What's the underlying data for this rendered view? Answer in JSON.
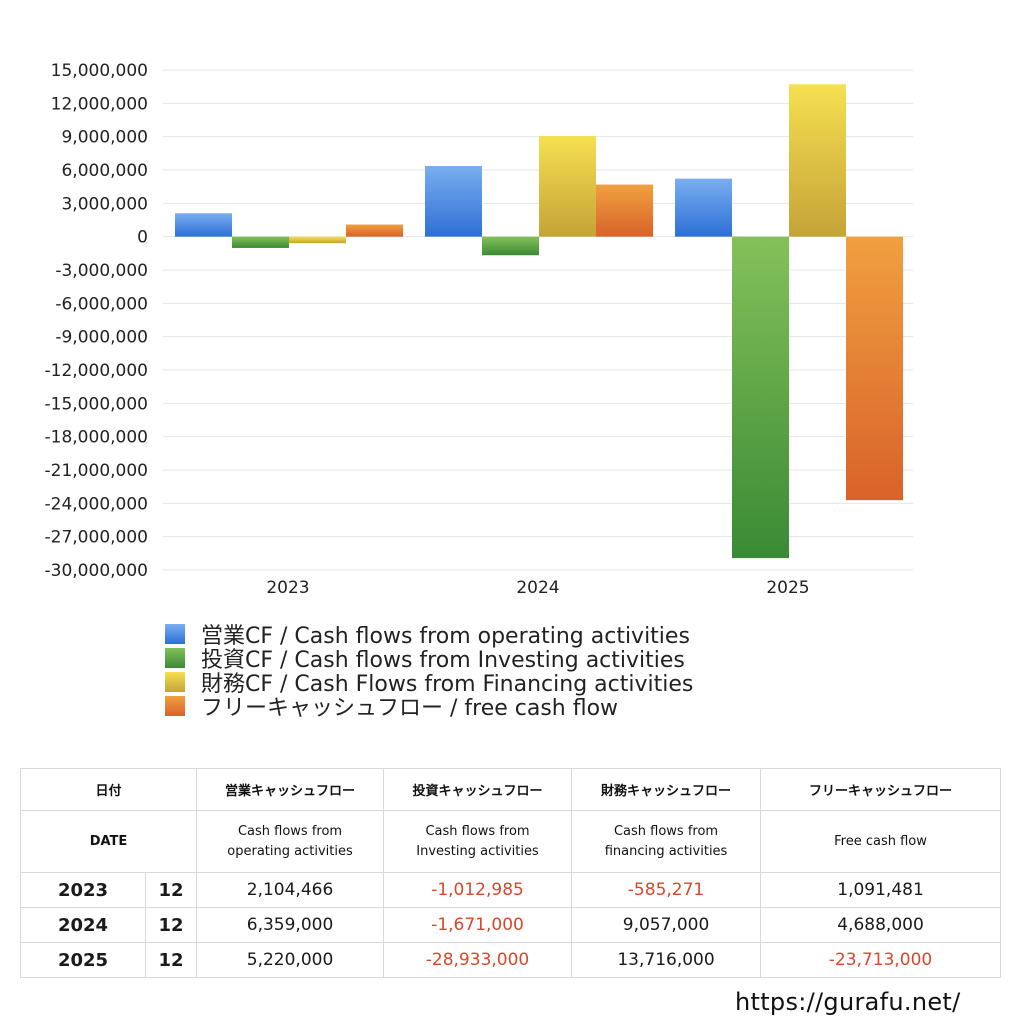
{
  "chart_data": {
    "type": "bar",
    "categories": [
      "2023",
      "2024",
      "2025"
    ],
    "series": [
      {
        "name": "営業CF / Cash flows from operating activities",
        "values": [
          2104466,
          6359000,
          5220000
        ],
        "colors": [
          "#79aef0",
          "#2d6fd6"
        ]
      },
      {
        "name": "投資CF / Cash flows from Investing activities",
        "values": [
          -1012985,
          -1671000,
          -28933000
        ],
        "colors": [
          "#84c15a",
          "#3a8a35"
        ]
      },
      {
        "name": "財務CF / Cash Flows from Financing activities",
        "values": [
          -585271,
          9057000,
          13716000
        ],
        "colors": [
          "#f5e050",
          "#c5a338"
        ]
      },
      {
        "name": "フリーキャッシュフロー / free cash flow",
        "values": [
          1091481,
          4688000,
          -23713000
        ],
        "colors": [
          "#f0a040",
          "#d9622a"
        ]
      }
    ],
    "ylim": [
      -30000000,
      15000000
    ],
    "yticks": [
      15000000,
      12000000,
      9000000,
      6000000,
      3000000,
      0,
      -3000000,
      -6000000,
      -9000000,
      -12000000,
      -15000000,
      -18000000,
      -21000000,
      -24000000,
      -27000000,
      -30000000
    ],
    "ytick_labels": [
      "15,000,000",
      "12,000,000",
      "9,000,000",
      "6,000,000",
      "3,000,000",
      "0",
      "-3,000,000",
      "-6,000,000",
      "-9,000,000",
      "-12,000,000",
      "-15,000,000",
      "-18,000,000",
      "-21,000,000",
      "-24,000,000",
      "-27,000,000",
      "-30,000,000"
    ],
    "grid": true,
    "legend_position": "bottom"
  },
  "table": {
    "header_jp": [
      "日付",
      "営業キャッシュフロー",
      "投資キャッシュフロー",
      "財務キャッシュフロー",
      "フリーキャッシュフロー"
    ],
    "header_en": [
      "DATE",
      "Cash flows from operating activities",
      "Cash flows from Investing activities",
      "Cash flows from financing activities",
      "Free cash flow"
    ],
    "header_en_lines": [
      [
        "DATE"
      ],
      [
        "Cash flows from",
        "operating activities"
      ],
      [
        "Cash flows from",
        "Investing activities"
      ],
      [
        "Cash flows from",
        "financing activities"
      ],
      [
        "Free cash flow"
      ]
    ],
    "rows": [
      {
        "year": "2023",
        "month": "12",
        "operating": "2,104,466",
        "investing": "-1,012,985",
        "financing": "-585,271",
        "free": "1,091,481"
      },
      {
        "year": "2024",
        "month": "12",
        "operating": "6,359,000",
        "investing": "-1,671,000",
        "financing": "9,057,000",
        "free": "4,688,000"
      },
      {
        "year": "2025",
        "month": "12",
        "operating": "5,220,000",
        "investing": "-28,933,000",
        "financing": "13,716,000",
        "free": "-23,713,000"
      }
    ]
  },
  "footer": {
    "url": "https://gurafu.net/"
  }
}
